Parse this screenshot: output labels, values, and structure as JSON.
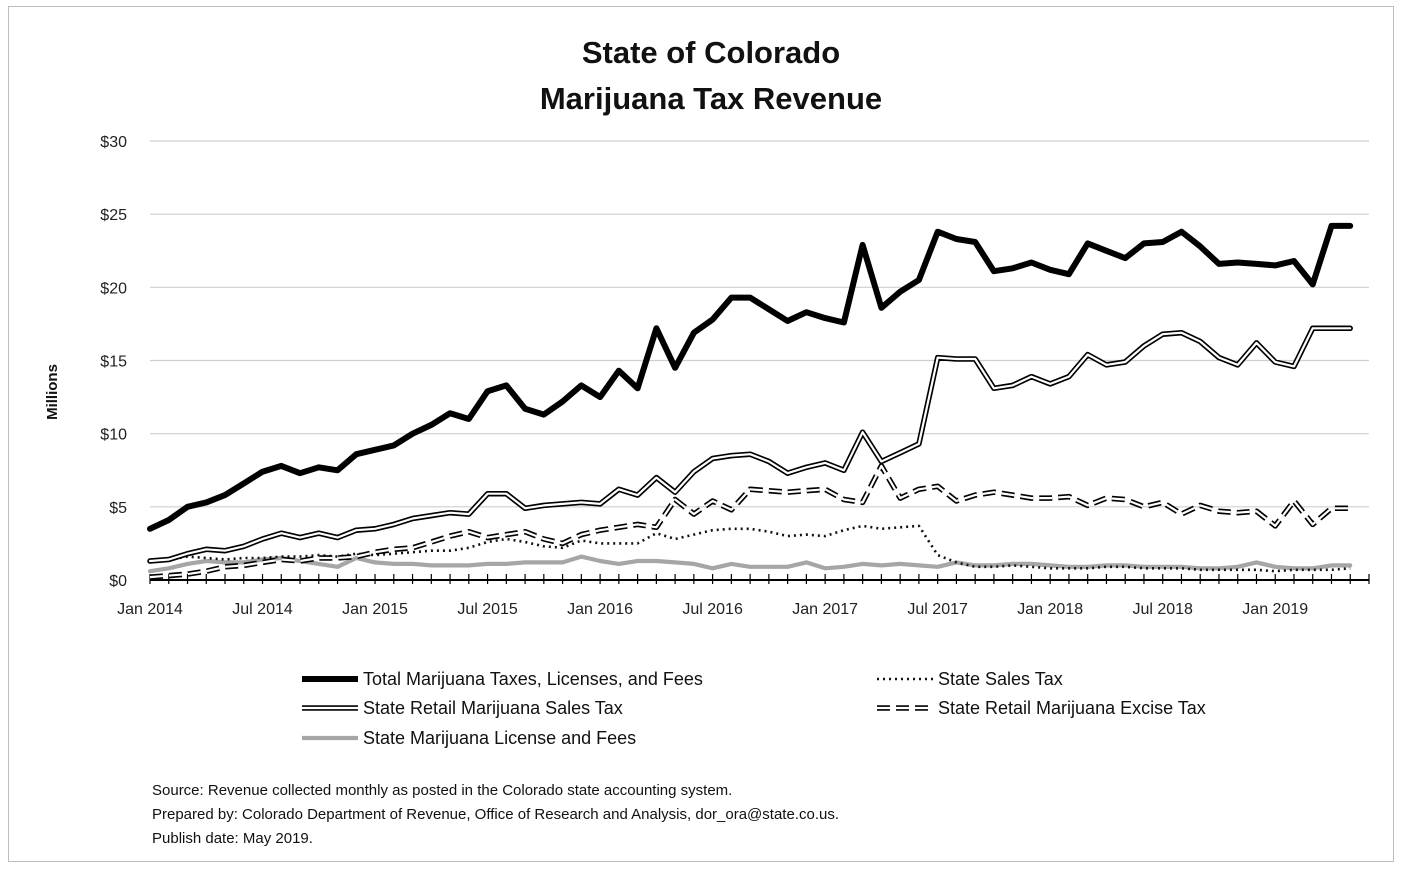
{
  "chart_data": {
    "type": "line",
    "title_lines": [
      "State of Colorado",
      "Marijuana Tax Revenue"
    ],
    "ylabel": "Millions",
    "xlabel": "",
    "ylim": [
      0,
      30
    ],
    "y_ticks": [
      "$0",
      "$5",
      "$10",
      "$15",
      "$20",
      "$25",
      "$30"
    ],
    "y_tick_values": [
      0,
      5,
      10,
      15,
      20,
      25,
      30
    ],
    "x_range": [
      "2014-01",
      "2019-06"
    ],
    "x_ticks": [
      "Jan 2014",
      "Jul 2014",
      "Jan 2015",
      "Jul 2015",
      "Jan 2016",
      "Jul 2016",
      "Jan 2017",
      "Jul 2017",
      "Jan 2018",
      "Jul 2018",
      "Jan 2019"
    ],
    "x_tick_dates": [
      "2014-01",
      "2014-07",
      "2015-01",
      "2015-07",
      "2016-01",
      "2016-07",
      "2017-01",
      "2017-07",
      "2018-01",
      "2018-07",
      "2019-01"
    ],
    "grid": true,
    "legend_position": "bottom",
    "x": [
      "2014-01",
      "2014-02",
      "2014-03",
      "2014-04",
      "2014-05",
      "2014-06",
      "2014-07",
      "2014-08",
      "2014-09",
      "2014-10",
      "2014-11",
      "2014-12",
      "2015-01",
      "2015-02",
      "2015-03",
      "2015-04",
      "2015-05",
      "2015-06",
      "2015-07",
      "2015-08",
      "2015-09",
      "2015-10",
      "2015-11",
      "2015-12",
      "2016-01",
      "2016-02",
      "2016-03",
      "2016-04",
      "2016-05",
      "2016-06",
      "2016-07",
      "2016-08",
      "2016-09",
      "2016-10",
      "2016-11",
      "2016-12",
      "2017-01",
      "2017-02",
      "2017-03",
      "2017-04",
      "2017-05",
      "2017-06",
      "2017-07",
      "2017-08",
      "2017-09",
      "2017-10",
      "2017-11",
      "2017-12",
      "2018-01",
      "2018-02",
      "2018-03",
      "2018-04",
      "2018-05",
      "2018-06",
      "2018-07",
      "2018-08",
      "2018-09",
      "2018-10",
      "2018-11",
      "2018-12",
      "2019-01",
      "2019-02",
      "2019-03",
      "2019-04",
      "2019-05"
    ],
    "series": [
      {
        "name": "Total Marijuana Taxes, Licenses, and Fees",
        "style": "thick-black",
        "color": "#000000",
        "values": [
          3.5,
          4.1,
          5.0,
          5.3,
          5.8,
          6.6,
          7.4,
          7.8,
          7.3,
          7.7,
          7.5,
          8.6,
          8.9,
          9.2,
          10.0,
          10.6,
          11.4,
          11.0,
          12.9,
          13.3,
          11.7,
          11.3,
          12.2,
          13.3,
          12.5,
          14.3,
          13.1,
          17.2,
          14.5,
          16.9,
          17.8,
          19.3,
          19.3,
          18.5,
          17.7,
          18.3,
          17.9,
          17.6,
          22.9,
          18.6,
          19.7,
          20.5,
          23.8,
          23.3,
          23.1,
          21.1,
          21.3,
          21.7,
          21.2,
          20.9,
          23.0,
          22.5,
          22.0,
          23.0,
          23.1,
          23.8,
          22.8,
          21.6,
          21.7,
          21.6,
          21.5,
          21.8,
          20.2,
          24.2,
          24.2
        ]
      },
      {
        "name": "State Sales Tax",
        "style": "dotted",
        "color": "#111111",
        "values": [
          1.3,
          1.4,
          1.6,
          1.5,
          1.4,
          1.5,
          1.5,
          1.6,
          1.6,
          1.7,
          1.6,
          1.8,
          1.7,
          1.8,
          1.9,
          2.0,
          2.0,
          2.2,
          2.6,
          2.8,
          2.6,
          2.3,
          2.2,
          2.7,
          2.5,
          2.5,
          2.5,
          3.2,
          2.8,
          3.1,
          3.4,
          3.5,
          3.5,
          3.3,
          3.0,
          3.1,
          3.0,
          3.4,
          3.7,
          3.5,
          3.6,
          3.7,
          1.7,
          1.2,
          0.9,
          0.9,
          1.0,
          0.9,
          0.8,
          0.8,
          0.8,
          0.9,
          0.9,
          0.8,
          0.8,
          0.8,
          0.7,
          0.7,
          0.7,
          0.7,
          0.6,
          0.7,
          0.7,
          0.7,
          0.8
        ]
      },
      {
        "name": "State Retail Marijuana Sales Tax",
        "style": "double-line",
        "color": "#000000",
        "values": [
          1.3,
          1.4,
          1.8,
          2.1,
          2.0,
          2.3,
          2.8,
          3.2,
          2.9,
          3.2,
          2.9,
          3.4,
          3.5,
          3.8,
          4.2,
          4.4,
          4.6,
          4.5,
          5.9,
          5.9,
          4.9,
          5.1,
          5.2,
          5.3,
          5.2,
          6.2,
          5.8,
          7.0,
          6.0,
          7.4,
          8.3,
          8.5,
          8.6,
          8.1,
          7.3,
          7.7,
          8.0,
          7.5,
          10.1,
          8.1,
          8.7,
          9.3,
          15.2,
          15.1,
          15.1,
          13.1,
          13.3,
          13.9,
          13.4,
          13.9,
          15.4,
          14.7,
          14.9,
          16.0,
          16.8,
          16.9,
          16.3,
          15.2,
          14.7,
          16.2,
          14.9,
          14.6,
          17.2,
          17.2,
          17.2
        ]
      },
      {
        "name": "State Retail Marijuana Excise Tax",
        "style": "dashed-double",
        "color": "#000000",
        "values": [
          0.2,
          0.3,
          0.4,
          0.6,
          0.9,
          1.0,
          1.2,
          1.4,
          1.3,
          1.5,
          1.5,
          1.6,
          1.9,
          2.1,
          2.2,
          2.6,
          3.0,
          3.3,
          2.9,
          3.1,
          3.3,
          2.8,
          2.5,
          3.1,
          3.4,
          3.6,
          3.8,
          3.6,
          5.5,
          4.5,
          5.4,
          4.8,
          6.2,
          6.1,
          6.0,
          6.1,
          6.2,
          5.5,
          5.3,
          7.8,
          5.6,
          6.2,
          6.4,
          5.4,
          5.8,
          6.0,
          5.8,
          5.6,
          5.6,
          5.7,
          5.1,
          5.6,
          5.5,
          5.0,
          5.3,
          4.5,
          5.1,
          4.7,
          4.6,
          4.7,
          3.7,
          5.4,
          3.8,
          4.9,
          4.9
        ]
      },
      {
        "name": "State Marijuana License and Fees",
        "style": "gray",
        "color": "#a6a6a6",
        "values": [
          0.6,
          0.8,
          1.1,
          1.3,
          1.2,
          1.2,
          1.4,
          1.5,
          1.3,
          1.1,
          0.9,
          1.5,
          1.2,
          1.1,
          1.1,
          1.0,
          1.0,
          1.0,
          1.1,
          1.1,
          1.2,
          1.2,
          1.2,
          1.6,
          1.3,
          1.1,
          1.3,
          1.3,
          1.2,
          1.1,
          0.8,
          1.1,
          0.9,
          0.9,
          0.9,
          1.2,
          0.8,
          0.9,
          1.1,
          1.0,
          1.1,
          1.0,
          0.9,
          1.2,
          1.0,
          1.0,
          1.1,
          1.1,
          1.0,
          0.9,
          0.9,
          1.0,
          1.0,
          0.9,
          0.9,
          0.9,
          0.8,
          0.8,
          0.9,
          1.2,
          0.9,
          0.8,
          0.8,
          1.0,
          1.0
        ]
      }
    ],
    "legend": {
      "left": [
        "Total Marijuana Taxes, Licenses, and Fees",
        "State Retail Marijuana Sales Tax",
        "State Marijuana License and Fees"
      ],
      "right": [
        "State Sales Tax",
        "State Retail Marijuana Excise Tax"
      ]
    },
    "footnotes": [
      "Source: Revenue collected monthly as posted in the Colorado state accounting system.",
      "Prepared by: Colorado Department of Revenue, Office of Research and Analysis, dor_ora@state.co.us.",
      "Publish date: May 2019."
    ]
  }
}
